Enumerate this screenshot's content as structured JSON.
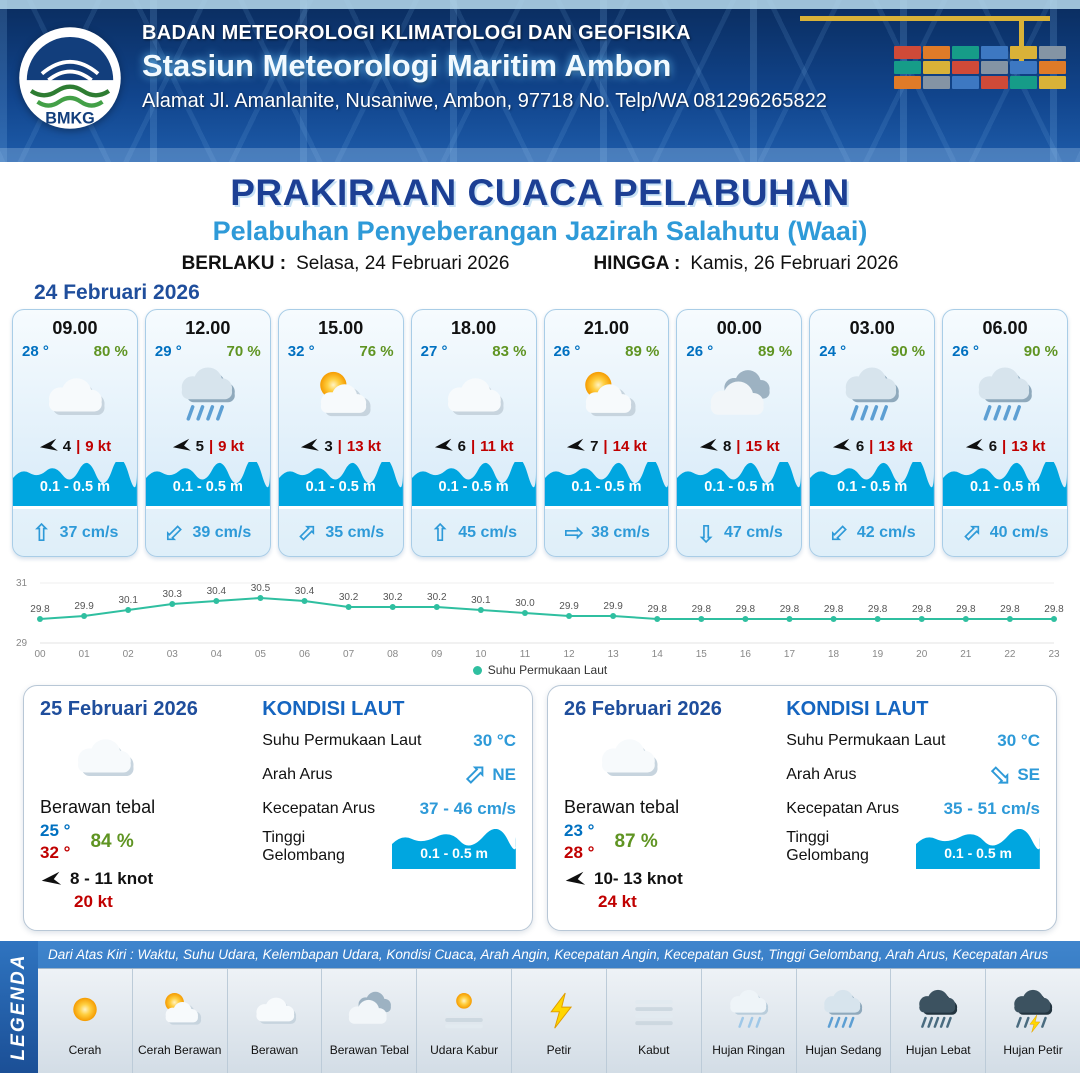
{
  "header": {
    "logo_label": "BMKG",
    "agency": "BADAN METEOROLOGI KLIMATOLOGI DAN GEOFISIKA",
    "station": "Stasiun Meteorologi Maritim Ambon",
    "address": "Alamat Jl. Amanlanite, Nusaniwe, Ambon, 97718   No. Telp/WA  081296265822"
  },
  "title": {
    "main": "PRAKIRAAN CUACA PELABUHAN",
    "subtitle": "Pelabuhan Penyeberangan Jazirah Salahutu (Waai)",
    "valid_label": "BERLAKU :",
    "valid_value": "Selasa, 24 Februari 2026",
    "until_label": "HINGGA :",
    "until_value": "Kamis, 26 Februari 2026"
  },
  "forecast_date": "24 Februari 2026",
  "hourly": [
    {
      "time": "09.00",
      "temp": "28 °",
      "humidity": "80 %",
      "icon": "berawan",
      "wind": "4",
      "gust": "9 kt",
      "wave": "0.1 - 0.5 m",
      "current": "37 cm/s",
      "current_dir_rot": 0
    },
    {
      "time": "12.00",
      "temp": "29 °",
      "humidity": "70 %",
      "icon": "hujan-sedang",
      "wind": "5",
      "gust": "9 kt",
      "wave": "0.1 - 0.5 m",
      "current": "39 cm/s",
      "current_dir_rot": 225
    },
    {
      "time": "15.00",
      "temp": "32 °",
      "humidity": "76 %",
      "icon": "cerah-berawan",
      "wind": "3",
      "gust": "13 kt",
      "wave": "0.1 - 0.5 m",
      "current": "35 cm/s",
      "current_dir_rot": 45
    },
    {
      "time": "18.00",
      "temp": "27 °",
      "humidity": "83 %",
      "icon": "berawan",
      "wind": "6",
      "gust": "11 kt",
      "wave": "0.1 - 0.5 m",
      "current": "45 cm/s",
      "current_dir_rot": 0
    },
    {
      "time": "21.00",
      "temp": "26 °",
      "humidity": "89 %",
      "icon": "cerah-berawan",
      "wind": "7",
      "gust": "14 kt",
      "wave": "0.1 - 0.5 m",
      "current": "38 cm/s",
      "current_dir_rot": 90
    },
    {
      "time": "00.00",
      "temp": "26 °",
      "humidity": "89 %",
      "icon": "berawan-tebal",
      "wind": "8",
      "gust": "15 kt",
      "wave": "0.1 - 0.5 m",
      "current": "47 cm/s",
      "current_dir_rot": 180
    },
    {
      "time": "03.00",
      "temp": "24 °",
      "humidity": "90 %",
      "icon": "hujan-sedang",
      "wind": "6",
      "gust": "13 kt",
      "wave": "0.1 - 0.5 m",
      "current": "42 cm/s",
      "current_dir_rot": 225
    },
    {
      "time": "06.00",
      "temp": "26 °",
      "humidity": "90 %",
      "icon": "hujan-sedang",
      "wind": "6",
      "gust": "13 kt",
      "wave": "0.1 - 0.5 m",
      "current": "40 cm/s",
      "current_dir_rot": 45
    }
  ],
  "chart_data": {
    "type": "line",
    "title": "Suhu Permukaan Laut",
    "x": [
      "00",
      "01",
      "02",
      "03",
      "04",
      "05",
      "06",
      "07",
      "08",
      "09",
      "10",
      "11",
      "12",
      "13",
      "14",
      "15",
      "16",
      "17",
      "18",
      "19",
      "20",
      "21",
      "22",
      "23"
    ],
    "series": [
      {
        "name": "Suhu Permukaan Laut",
        "values": [
          29.8,
          29.9,
          30.1,
          30.3,
          30.4,
          30.5,
          30.4,
          30.2,
          30.2,
          30.2,
          30.1,
          30.0,
          29.9,
          29.9,
          29.8,
          29.8,
          29.8,
          29.8,
          29.8,
          29.8,
          29.8,
          29.8,
          29.8,
          29.8
        ]
      }
    ],
    "ylim": [
      29,
      31
    ],
    "line_color": "#2fbfa0",
    "grid": false,
    "legend_position": "bottom"
  },
  "days": [
    {
      "date": "25 Februari 2026",
      "icon": "berawan",
      "condition": "Berawan tebal",
      "temp_min": "25 °",
      "temp_max": "32 °",
      "humidity": "84 %",
      "wind": "8 - 11 knot",
      "gust": "20 kt",
      "sea": {
        "title": "KONDISI LAUT",
        "sst_label": "Suhu Permukaan Laut",
        "sst": "30 °C",
        "current_dir_label": "Arah Arus",
        "current_dir": "NE",
        "current_dir_rot": 45,
        "current_speed_label": "Kecepatan Arus",
        "current_speed": "37 - 46 cm/s",
        "wave_label": "Tinggi Gelombang",
        "wave": "0.1 - 0.5 m"
      }
    },
    {
      "date": "26 Februari 2026",
      "icon": "berawan",
      "condition": "Berawan tebal",
      "temp_min": "23 °",
      "temp_max": "28 °",
      "humidity": "87 %",
      "wind": "10- 13 knot",
      "gust": "24 kt",
      "sea": {
        "title": "KONDISI LAUT",
        "sst_label": "Suhu Permukaan Laut",
        "sst": "30 °C",
        "current_dir_label": "Arah Arus",
        "current_dir": "SE",
        "current_dir_rot": 135,
        "current_speed_label": "Kecepatan Arus",
        "current_speed": "35 - 51 cm/s",
        "wave_label": "Tinggi Gelombang",
        "wave": "0.1 - 0.5 m"
      }
    }
  ],
  "legend": {
    "title": "LEGENDA",
    "description": "Dari Atas Kiri : Waktu, Suhu Udara, Kelembapan Udara, Kondisi Cuaca, Arah Angin, Kecepatan Angin, Kecepatan Gust, Tinggi Gelombang, Arah Arus, Kecepatan Arus",
    "items": [
      {
        "label": "Cerah",
        "icon": "cerah"
      },
      {
        "label": "Cerah Berawan",
        "icon": "cerah-berawan"
      },
      {
        "label": "Berawan",
        "icon": "berawan"
      },
      {
        "label": "Berawan Tebal",
        "icon": "berawan-tebal"
      },
      {
        "label": "Udara Kabur",
        "icon": "udara-kabur"
      },
      {
        "label": "Petir",
        "icon": "petir"
      },
      {
        "label": "Kabut",
        "icon": "kabut"
      },
      {
        "label": "Hujan Ringan",
        "icon": "hujan-ringan"
      },
      {
        "label": "Hujan Sedang",
        "icon": "hujan-sedang"
      },
      {
        "label": "Hujan Lebat",
        "icon": "hujan-lebat"
      },
      {
        "label": "Hujan Petir",
        "icon": "hujan-petir"
      }
    ]
  },
  "colors": {
    "accent_navy": "#1c3f94",
    "accent_blue": "#2e9ad8",
    "temp_blue": "#0070c0",
    "humidity_green": "#5f9422",
    "alert_red": "#c00000",
    "wave_blue": "#00a6e0",
    "chart_teal": "#2fbfa0"
  }
}
